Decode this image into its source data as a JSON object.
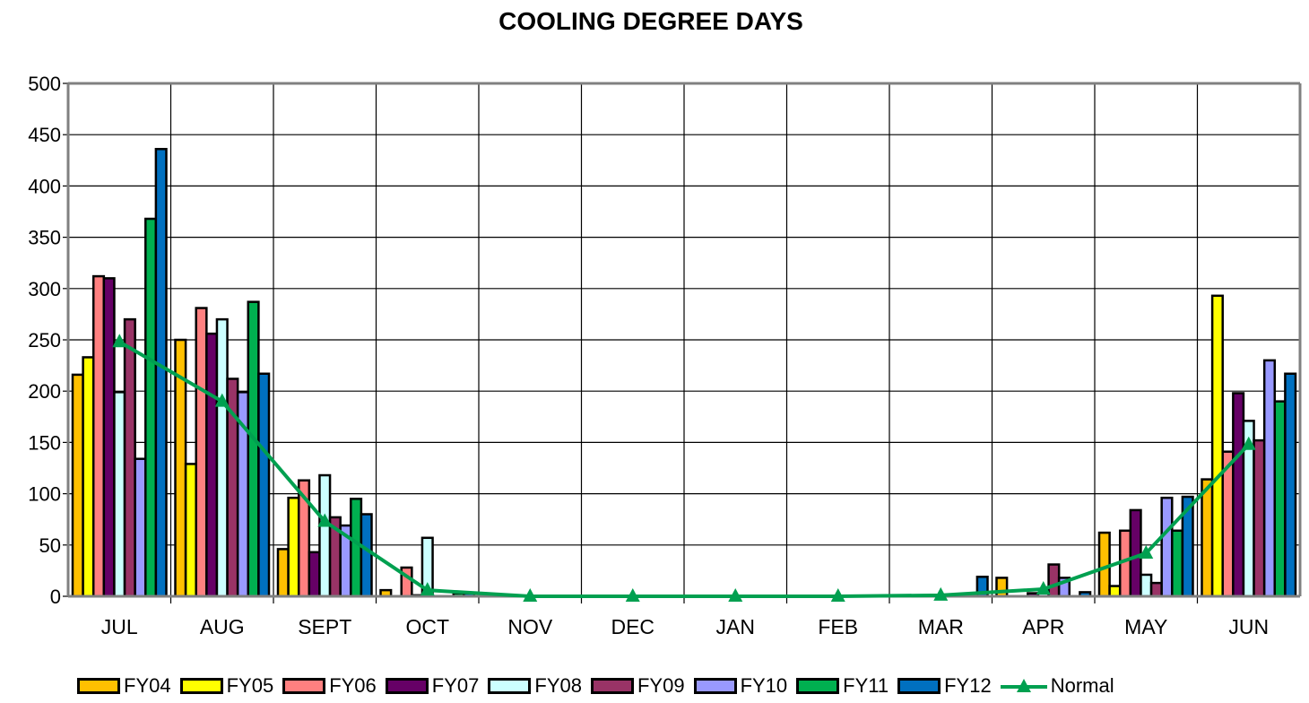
{
  "chart_data": {
    "type": "bar",
    "title": "COOLING DEGREE DAYS",
    "xlabel": "",
    "ylabel": "",
    "ylim": [
      0,
      500
    ],
    "yticks": [
      0,
      50,
      100,
      150,
      200,
      250,
      300,
      350,
      400,
      450,
      500
    ],
    "grid": true,
    "legend_position": "bottom",
    "categories": [
      "JUL",
      "AUG",
      "SEPT",
      "OCT",
      "NOV",
      "DEC",
      "JAN",
      "FEB",
      "MAR",
      "APR",
      "MAY",
      "JUN"
    ],
    "series": [
      {
        "name": "FY04",
        "type": "bar",
        "color": "#FFC000",
        "values": [
          216,
          250,
          46,
          6,
          0,
          0,
          0,
          0,
          0,
          18,
          62,
          114
        ]
      },
      {
        "name": "FY05",
        "type": "bar",
        "color": "#FFFF00",
        "values": [
          233,
          129,
          96,
          0,
          0,
          0,
          0,
          0,
          0,
          0,
          10,
          293
        ]
      },
      {
        "name": "FY06",
        "type": "bar",
        "color": "#FF8080",
        "values": [
          312,
          281,
          113,
          28,
          0,
          0,
          0,
          0,
          0,
          0,
          64,
          141
        ]
      },
      {
        "name": "FY07",
        "type": "bar",
        "color": "#660066",
        "values": [
          310,
          256,
          43,
          1,
          0,
          0,
          0,
          0,
          0,
          3,
          84,
          198
        ]
      },
      {
        "name": "FY08",
        "type": "bar",
        "color": "#CCFFFF",
        "values": [
          199,
          270,
          118,
          57,
          0,
          0,
          0,
          0,
          0,
          3,
          21,
          171
        ]
      },
      {
        "name": "FY09",
        "type": "bar",
        "color": "#993366",
        "values": [
          270,
          212,
          77,
          0,
          0,
          0,
          0,
          0,
          0,
          31,
          13,
          152
        ]
      },
      {
        "name": "FY10",
        "type": "bar",
        "color": "#9999FF",
        "values": [
          134,
          199,
          69,
          0,
          0,
          0,
          0,
          0,
          0,
          18,
          96,
          230
        ]
      },
      {
        "name": "FY11",
        "type": "bar",
        "color": "#00B050",
        "values": [
          368,
          287,
          95,
          3,
          0,
          0,
          0,
          0,
          0,
          0,
          64,
          190
        ]
      },
      {
        "name": "FY12",
        "type": "bar",
        "color": "#0070C0",
        "values": [
          436,
          217,
          80,
          3,
          0,
          0,
          0,
          0,
          19,
          4,
          97,
          217
        ]
      },
      {
        "name": "Normal",
        "type": "line",
        "color": "#00A050",
        "marker": "triangle",
        "values": [
          248,
          190,
          73,
          6,
          0,
          0,
          0,
          0,
          1,
          7,
          42,
          148
        ]
      }
    ]
  }
}
